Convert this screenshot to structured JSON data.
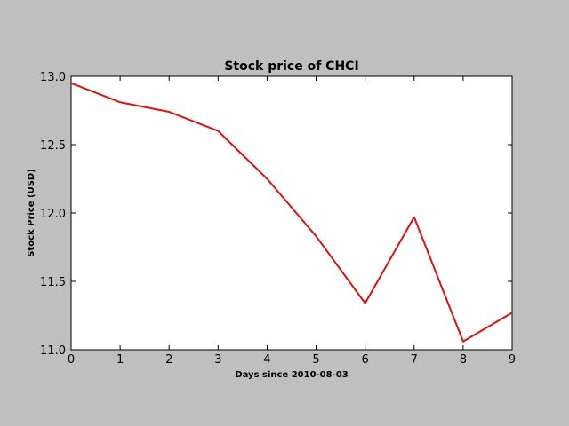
{
  "chart_data": {
    "type": "line",
    "title": "Stock price of CHCI",
    "xlabel": "Days since 2010-08-03",
    "ylabel": "Stock Price (USD)",
    "xlim": [
      0,
      9
    ],
    "ylim": [
      11.0,
      13.0
    ],
    "xticks": [
      "0",
      "1",
      "2",
      "3",
      "4",
      "5",
      "6",
      "7",
      "8",
      "9"
    ],
    "yticks": [
      "11.0",
      "11.5",
      "12.0",
      "12.5",
      "13.0"
    ],
    "grid": false,
    "legend": false,
    "series": [
      {
        "color": "#dd1111",
        "x": [
          0,
          1,
          2,
          3,
          4,
          5,
          6,
          7,
          8,
          9
        ],
        "y": [
          12.95,
          12.81,
          12.74,
          12.6,
          12.25,
          11.83,
          11.34,
          11.97,
          11.06,
          11.27
        ]
      }
    ]
  }
}
